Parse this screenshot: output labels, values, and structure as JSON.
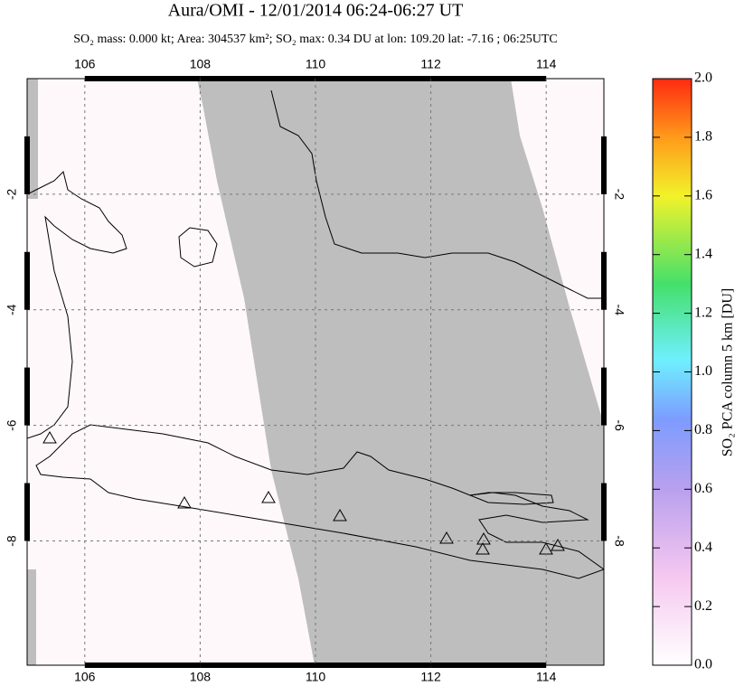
{
  "title": "Aura/OMI - 12/01/2014 06:24-06:27 UT",
  "subtitle": "SO₂ mass: 0.000 kt; Area: 304537 km²; SO₂ max: 0.34 DU at lon: 109.20 lat: -7.16 ; 06:25UTC",
  "map": {
    "lonlim": [
      105,
      115
    ],
    "latlim": [
      -10.15,
      0
    ],
    "lonticks": [
      106,
      108,
      110,
      112,
      114
    ],
    "latticks": [
      -2,
      -4,
      -6,
      -8
    ]
  },
  "colorbar": {
    "label": "SO₂ PCA column 5 km [DU]",
    "lim": [
      0,
      2
    ],
    "ticks": [
      {
        "value": 0,
        "label": "0.0"
      },
      {
        "value": 0.2,
        "label": "0.2"
      },
      {
        "value": 0.4,
        "label": "0.4"
      },
      {
        "value": 0.6,
        "label": "0.6"
      },
      {
        "value": 0.8,
        "label": "0.8"
      },
      {
        "value": 1,
        "label": "1.0"
      },
      {
        "value": 1.2,
        "label": "1.2"
      },
      {
        "value": 1.4,
        "label": "1.4"
      },
      {
        "value": 1.6,
        "label": "1.6"
      },
      {
        "value": 1.8,
        "label": "1.8"
      },
      {
        "value": 2,
        "label": "2.0"
      }
    ]
  }
}
